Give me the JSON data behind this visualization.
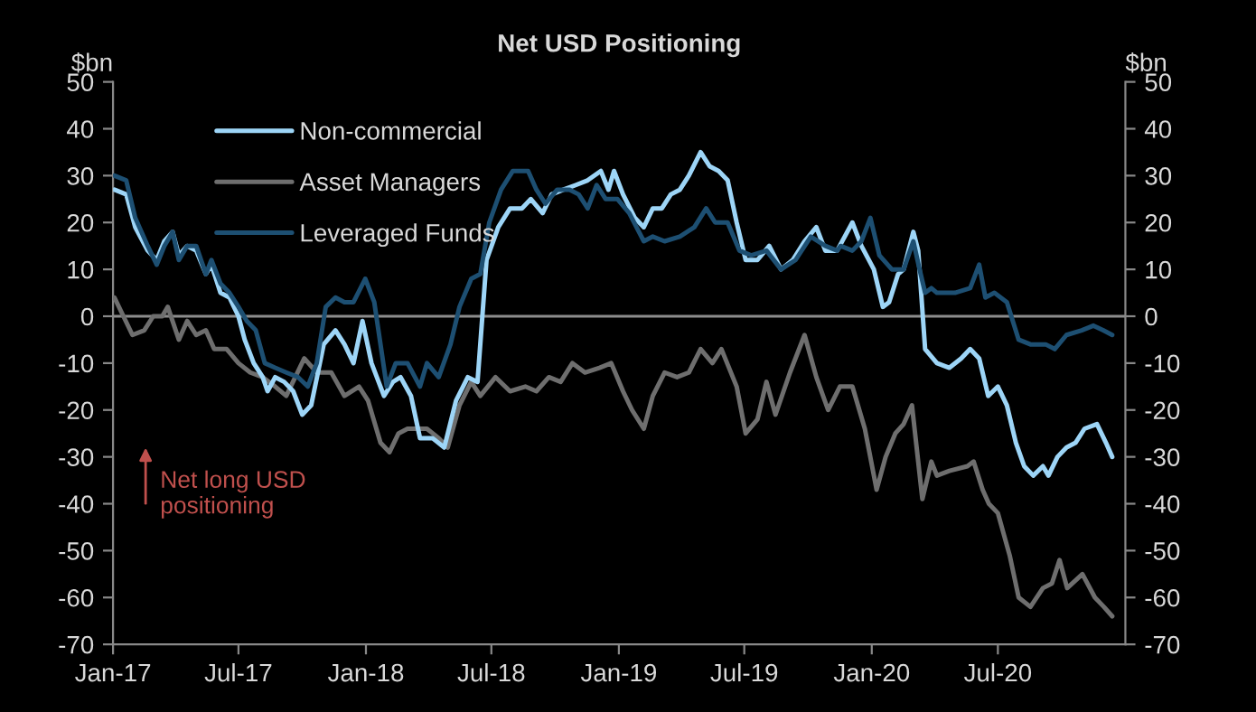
{
  "chart_data": {
    "type": "line",
    "title": "Net USD Positioning",
    "ylabel": "$bn",
    "y2label": "$bn",
    "xlim": [
      "2017-01-01",
      "2021-01-01"
    ],
    "xticks": [
      {
        "value": "2017-01-01",
        "label": "Jan-17"
      },
      {
        "value": "2017-07-01",
        "label": "Jul-17"
      },
      {
        "value": "2018-01-01",
        "label": "Jan-18"
      },
      {
        "value": "2018-07-01",
        "label": "Jul-18"
      },
      {
        "value": "2019-01-01",
        "label": "Jan-19"
      },
      {
        "value": "2019-07-01",
        "label": "Jul-19"
      },
      {
        "value": "2020-01-01",
        "label": "Jan-20"
      },
      {
        "value": "2020-07-01",
        "label": "Jul-20"
      }
    ],
    "ylim": [
      -70,
      50
    ],
    "yticks": [
      -70,
      -60,
      -50,
      -40,
      -30,
      -20,
      -10,
      0,
      10,
      20,
      30,
      40,
      50
    ],
    "y2lim": [
      -70,
      50
    ],
    "y2ticks": [
      -70,
      -60,
      -50,
      -40,
      -30,
      -20,
      -10,
      0,
      10,
      20,
      30,
      40,
      50
    ],
    "grid": false,
    "legend": "top left",
    "marker": "none",
    "line_style": "solid",
    "ref_lines": [
      {
        "axis": "y",
        "value": 0,
        "color": "#8c8c8c"
      }
    ],
    "annotations": [
      "Net long USD\npositioning"
    ],
    "series": [
      {
        "name": "Asset Managers",
        "color": "#6e6e6e",
        "x": [
          "2017-01-03",
          "2017-01-16",
          "2017-01-29",
          "2017-02-15",
          "2017-02-28",
          "2017-03-13",
          "2017-03-21",
          "2017-04-06",
          "2017-04-18",
          "2017-05-01",
          "2017-05-15",
          "2017-05-27",
          "2017-06-14",
          "2017-07-01",
          "2017-07-18",
          "2017-08-05",
          "2017-08-23",
          "2017-09-08",
          "2017-09-21",
          "2017-10-04",
          "2017-10-22",
          "2017-11-12",
          "2017-12-01",
          "2017-12-22",
          "2018-01-04",
          "2018-01-22",
          "2018-02-04",
          "2018-02-17",
          "2018-03-02",
          "2018-03-20",
          "2018-03-30",
          "2018-04-16",
          "2018-04-29",
          "2018-05-16",
          "2018-06-02",
          "2018-06-15",
          "2018-07-07",
          "2018-07-28",
          "2018-08-19",
          "2018-09-04",
          "2018-09-22",
          "2018-10-09",
          "2018-10-26",
          "2018-11-13",
          "2018-12-04",
          "2018-12-21",
          "2019-01-07",
          "2019-01-20",
          "2019-02-06",
          "2019-02-19",
          "2019-03-08",
          "2019-03-26",
          "2019-04-12",
          "2019-04-29",
          "2019-05-16",
          "2019-05-29",
          "2019-06-20",
          "2019-07-03",
          "2019-07-20",
          "2019-08-02",
          "2019-08-15",
          "2019-09-05",
          "2019-09-26",
          "2019-10-13",
          "2019-10-30",
          "2019-11-16",
          "2019-12-04",
          "2019-12-22",
          "2020-01-08",
          "2020-01-21",
          "2020-02-04",
          "2020-02-16",
          "2020-02-28",
          "2020-03-14",
          "2020-03-27",
          "2020-04-04",
          "2020-04-22",
          "2020-05-18",
          "2020-05-27",
          "2020-06-09",
          "2020-06-18",
          "2020-07-01",
          "2020-07-18",
          "2020-07-31",
          "2020-08-17",
          "2020-09-04",
          "2020-09-17",
          "2020-09-28",
          "2020-10-09",
          "2020-10-31",
          "2020-11-18",
          "2020-12-01",
          "2020-12-13"
        ],
        "values": [
          4,
          0,
          -4,
          -3,
          0,
          0,
          2,
          -5,
          -1,
          -4,
          -3,
          -7,
          -7,
          -10,
          -12,
          -13,
          -15,
          -17,
          -13,
          -9,
          -12,
          -12,
          -17,
          -15,
          -18,
          -27,
          -29,
          -25,
          -24,
          -24,
          -24,
          -26,
          -28,
          -19,
          -14,
          -17,
          -13,
          -16,
          -15,
          -16,
          -13,
          -14,
          -10,
          -12,
          -11,
          -10,
          -16,
          -20,
          -24,
          -17,
          -12,
          -13,
          -12,
          -7,
          -10,
          -7,
          -15,
          -25,
          -22,
          -14,
          -21,
          -12,
          -4,
          -13,
          -20,
          -15,
          -15,
          -24,
          -37,
          -30,
          -25,
          -23,
          -19,
          -39,
          -31,
          -34,
          -33,
          -32,
          -31,
          -37,
          -40,
          -42,
          -51,
          -60,
          -62,
          -58,
          -57,
          -52,
          -58,
          -55,
          -60,
          -62,
          -64
        ]
      },
      {
        "name": "Non-commercial",
        "color": "#9dd5f7",
        "x": [
          "2017-01-03",
          "2017-01-20",
          "2017-02-02",
          "2017-02-20",
          "2017-03-05",
          "2017-03-16",
          "2017-03-28",
          "2017-04-06",
          "2017-04-18",
          "2017-05-01",
          "2017-05-15",
          "2017-05-23",
          "2017-06-05",
          "2017-06-18",
          "2017-07-01",
          "2017-07-10",
          "2017-07-23",
          "2017-08-05",
          "2017-08-12",
          "2017-08-23",
          "2017-09-05",
          "2017-09-18",
          "2017-10-01",
          "2017-10-14",
          "2017-11-01",
          "2017-11-18",
          "2017-12-01",
          "2017-12-14",
          "2017-12-27",
          "2018-01-09",
          "2018-01-27",
          "2018-02-09",
          "2018-02-20",
          "2018-03-07",
          "2018-03-20",
          "2018-04-07",
          "2018-04-24",
          "2018-05-11",
          "2018-05-28",
          "2018-06-11",
          "2018-06-24",
          "2018-07-11",
          "2018-07-28",
          "2018-08-14",
          "2018-08-27",
          "2018-09-13",
          "2018-09-26",
          "2018-10-13",
          "2018-10-31",
          "2018-11-17",
          "2018-12-06",
          "2018-12-17",
          "2018-12-25",
          "2019-01-07",
          "2019-01-24",
          "2019-02-06",
          "2019-02-19",
          "2019-03-04",
          "2019-03-17",
          "2019-03-30",
          "2019-04-12",
          "2019-04-29",
          "2019-05-12",
          "2019-05-25",
          "2019-06-07",
          "2019-06-20",
          "2019-07-03",
          "2019-07-20",
          "2019-08-06",
          "2019-08-23",
          "2019-09-09",
          "2019-09-26",
          "2019-10-13",
          "2019-10-26",
          "2019-11-12",
          "2019-12-04",
          "2019-12-17",
          "2020-01-04",
          "2020-01-17",
          "2020-01-26",
          "2020-02-08",
          "2020-02-16",
          "2020-03-01",
          "2020-03-08",
          "2020-03-18",
          "2020-04-04",
          "2020-04-22",
          "2020-05-09",
          "2020-05-22",
          "2020-06-04",
          "2020-06-17",
          "2020-07-01",
          "2020-07-14",
          "2020-07-27",
          "2020-08-08",
          "2020-08-21",
          "2020-09-04",
          "2020-09-12",
          "2020-09-25",
          "2020-10-08",
          "2020-10-21",
          "2020-11-03",
          "2020-11-21",
          "2020-12-04",
          "2020-12-13"
        ],
        "values": [
          27,
          26,
          19,
          14,
          12,
          16,
          18,
          13,
          15,
          14,
          9,
          11,
          5,
          4,
          0,
          -5,
          -10,
          -13,
          -16,
          -13,
          -14,
          -16,
          -21,
          -19,
          -6,
          -3,
          -6,
          -10,
          -1,
          -10,
          -17,
          -14,
          -13,
          -17,
          -26,
          -26,
          -28,
          -18,
          -13,
          -14,
          12,
          19,
          23,
          23,
          25,
          22,
          26,
          27,
          28,
          29,
          31,
          27,
          31,
          26,
          21,
          19,
          23,
          23,
          26,
          27,
          30,
          35,
          32,
          31,
          29,
          20,
          12,
          12,
          15,
          10,
          12,
          16,
          19,
          14,
          14,
          20,
          15,
          10,
          2,
          3,
          9,
          10,
          18,
          14,
          -7,
          -10,
          -11,
          -9,
          -7,
          -9,
          -17,
          -15,
          -19,
          -27,
          -32,
          -34,
          -32,
          -34,
          -30,
          -28,
          -27,
          -24,
          -23,
          -27,
          -30
        ]
      },
      {
        "name": "Leveraged Funds",
        "color": "#1d4f72",
        "x": [
          "2017-01-03",
          "2017-01-20",
          "2017-02-02",
          "2017-02-20",
          "2017-03-05",
          "2017-03-16",
          "2017-03-28",
          "2017-04-06",
          "2017-04-18",
          "2017-05-01",
          "2017-05-15",
          "2017-05-23",
          "2017-06-05",
          "2017-06-18",
          "2017-07-01",
          "2017-07-13",
          "2017-07-26",
          "2017-08-08",
          "2017-08-23",
          "2017-09-08",
          "2017-09-25",
          "2017-10-09",
          "2017-10-22",
          "2017-11-04",
          "2017-11-18",
          "2017-12-01",
          "2017-12-14",
          "2017-12-31",
          "2018-01-13",
          "2018-01-31",
          "2018-02-13",
          "2018-03-02",
          "2018-03-20",
          "2018-03-30",
          "2018-04-16",
          "2018-05-03",
          "2018-05-16",
          "2018-06-02",
          "2018-06-15",
          "2018-06-28",
          "2018-07-15",
          "2018-08-01",
          "2018-08-23",
          "2018-09-04",
          "2018-09-17",
          "2018-10-04",
          "2018-10-22",
          "2018-11-04",
          "2018-11-17",
          "2018-11-30",
          "2018-12-13",
          "2018-12-30",
          "2019-01-16",
          "2019-02-06",
          "2019-02-19",
          "2019-03-08",
          "2019-03-30",
          "2019-04-20",
          "2019-05-07",
          "2019-05-20",
          "2019-06-07",
          "2019-06-24",
          "2019-07-11",
          "2019-08-02",
          "2019-08-23",
          "2019-09-13",
          "2019-10-05",
          "2019-10-26",
          "2019-11-12",
          "2019-11-17",
          "2019-12-04",
          "2019-12-17",
          "2019-12-30",
          "2020-01-12",
          "2020-01-30",
          "2020-02-16",
          "2020-03-01",
          "2020-03-10",
          "2020-03-18",
          "2020-03-27",
          "2020-04-04",
          "2020-04-30",
          "2020-05-22",
          "2020-06-04",
          "2020-06-13",
          "2020-06-26",
          "2020-07-14",
          "2020-07-31",
          "2020-08-17",
          "2020-09-08",
          "2020-09-21",
          "2020-10-08",
          "2020-10-30",
          "2020-11-16",
          "2020-11-30",
          "2020-12-13"
        ],
        "values": [
          30,
          29,
          21,
          15,
          11,
          15,
          18,
          12,
          15,
          15,
          9,
          12,
          7,
          5,
          2,
          -1,
          -3,
          -10,
          -11,
          -12,
          -13,
          -15,
          -10,
          2,
          4,
          3,
          3,
          8,
          3,
          -15,
          -10,
          -10,
          -15,
          -10,
          -13,
          -6,
          2,
          8,
          9,
          20,
          27,
          31,
          31,
          27,
          24,
          27,
          27,
          26,
          23,
          28,
          25,
          25,
          22,
          16,
          17,
          16,
          17,
          19,
          23,
          20,
          20,
          14,
          13,
          14,
          10,
          12,
          17,
          15,
          14,
          15,
          14,
          16,
          21,
          13,
          10,
          10,
          16,
          10,
          5,
          6,
          5,
          5,
          6,
          11,
          4,
          5,
          3,
          -5,
          -6,
          -6,
          -7,
          -4,
          -3,
          -2,
          -3,
          -4
        ]
      }
    ]
  }
}
